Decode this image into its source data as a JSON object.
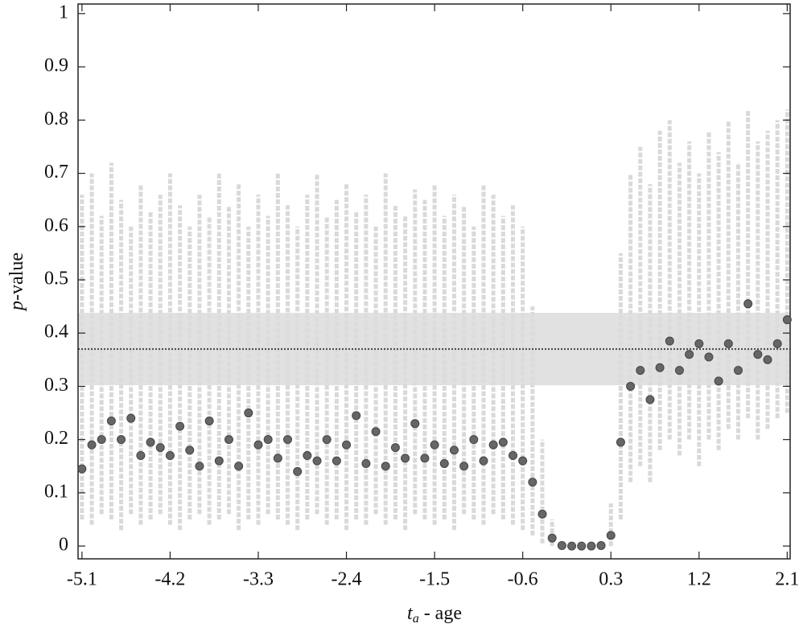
{
  "chart_data": {
    "type": "scatter",
    "xlabel": "t",
    "xlabel_sub": "a",
    "xlabel_rest": " - age",
    "ylabel_italic": "p",
    "ylabel_rest": "-value",
    "xlim": [
      -5.14,
      2.13
    ],
    "ylim": [
      -0.024,
      1.018
    ],
    "xticks": [
      -5.1,
      -4.2,
      -3.3,
      -2.4,
      -1.5,
      -0.6,
      0.3,
      1.2,
      2.1
    ],
    "yticks": [
      0,
      0.1,
      0.2,
      0.3,
      0.4,
      0.5,
      0.6,
      0.7,
      0.8,
      0.9,
      1
    ],
    "reference": {
      "value": 0.37,
      "band": [
        0.302,
        0.438
      ],
      "band_color": "#dcdcdc",
      "line_color": "#444444"
    },
    "x": [
      -5.1,
      -5.0,
      -4.9,
      -4.8,
      -4.7,
      -4.6,
      -4.5,
      -4.4,
      -4.3,
      -4.2,
      -4.1,
      -4.0,
      -3.9,
      -3.8,
      -3.7,
      -3.6,
      -3.5,
      -3.4,
      -3.3,
      -3.2,
      -3.1,
      -3.0,
      -2.9,
      -2.8,
      -2.7,
      -2.6,
      -2.5,
      -2.4,
      -2.3,
      -2.2,
      -2.1,
      -2.0,
      -1.9,
      -1.8,
      -1.7,
      -1.6,
      -1.5,
      -1.4,
      -1.3,
      -1.2,
      -1.1,
      -1.0,
      -0.9,
      -0.8,
      -0.7,
      -0.6,
      -0.5,
      -0.4,
      -0.3,
      -0.2,
      -0.1,
      0.0,
      0.1,
      0.2,
      0.3,
      0.4,
      0.5,
      0.6,
      0.7,
      0.8,
      0.9,
      1.0,
      1.1,
      1.2,
      1.3,
      1.4,
      1.5,
      1.6,
      1.7,
      1.8,
      1.9,
      2.0,
      2.1
    ],
    "series": [
      {
        "color": "#666666",
        "error_color": "#d9d9d9",
        "values": [
          0.145,
          0.19,
          0.2,
          0.235,
          0.2,
          0.24,
          0.17,
          0.195,
          0.185,
          0.17,
          0.225,
          0.18,
          0.15,
          0.235,
          0.16,
          0.2,
          0.15,
          0.25,
          0.19,
          0.2,
          0.165,
          0.2,
          0.14,
          0.17,
          0.16,
          0.2,
          0.16,
          0.19,
          0.245,
          0.155,
          0.215,
          0.15,
          0.185,
          0.165,
          0.23,
          0.165,
          0.19,
          0.155,
          0.18,
          0.15,
          0.2,
          0.16,
          0.19,
          0.195,
          0.17,
          0.16,
          0.12,
          0.06,
          0.015,
          0.001,
          0,
          0,
          0,
          0.001,
          0.02,
          0.195,
          0.3,
          0.33,
          0.275,
          0.335,
          0.385,
          0.33,
          0.36,
          0.38,
          0.355,
          0.31,
          0.38,
          0.33,
          0.455,
          0.36,
          0.35,
          0.38,
          0.425
        ],
        "lower": [
          0.05,
          0.04,
          0.06,
          0.05,
          0.03,
          0.06,
          0.04,
          0.05,
          0.06,
          0.04,
          0.03,
          0.05,
          0.06,
          0.04,
          0.05,
          0.06,
          0.03,
          0.05,
          0.04,
          0.06,
          0.05,
          0.04,
          0.03,
          0.05,
          0.06,
          0.04,
          0.05,
          0.03,
          0.05,
          0.04,
          0.06,
          0.04,
          0.05,
          0.03,
          0.06,
          0.05,
          0.04,
          0.05,
          0.03,
          0.06,
          0.05,
          0.04,
          0.06,
          0.05,
          0.04,
          0.03,
          0.02,
          0.005,
          0,
          0,
          0,
          0,
          0,
          0,
          0,
          0.05,
          0.12,
          0.15,
          0.12,
          0.18,
          0.2,
          0.17,
          0.2,
          0.15,
          0.2,
          0.18,
          0.22,
          0.2,
          0.24,
          0.2,
          0.22,
          0.24,
          0.25
        ],
        "upper": [
          0.66,
          0.7,
          0.62,
          0.72,
          0.65,
          0.6,
          0.68,
          0.63,
          0.66,
          0.7,
          0.64,
          0.6,
          0.66,
          0.62,
          0.7,
          0.64,
          0.68,
          0.6,
          0.66,
          0.62,
          0.7,
          0.64,
          0.6,
          0.66,
          0.7,
          0.62,
          0.65,
          0.68,
          0.63,
          0.66,
          0.6,
          0.7,
          0.64,
          0.62,
          0.67,
          0.65,
          0.68,
          0.62,
          0.66,
          0.64,
          0.6,
          0.68,
          0.66,
          0.62,
          0.64,
          0.6,
          0.45,
          0.2,
          0.05,
          0.01,
          0,
          0,
          0,
          0.01,
          0.08,
          0.55,
          0.7,
          0.75,
          0.68,
          0.78,
          0.8,
          0.72,
          0.76,
          0.7,
          0.78,
          0.74,
          0.8,
          0.72,
          0.82,
          0.76,
          0.78,
          0.8,
          0.82
        ]
      }
    ]
  }
}
